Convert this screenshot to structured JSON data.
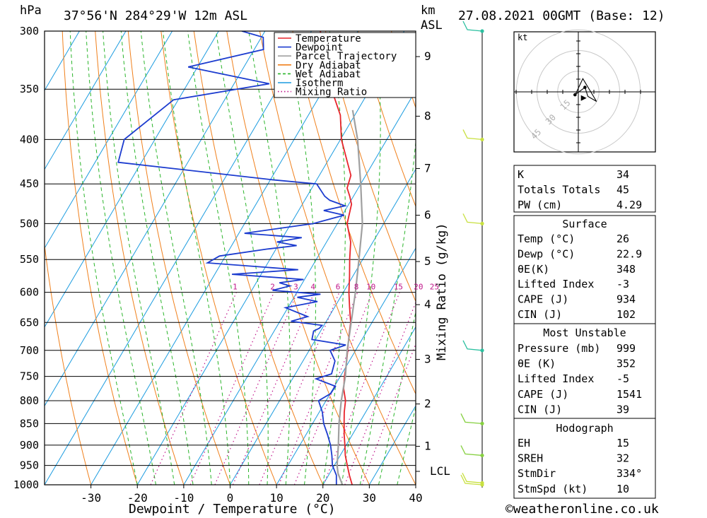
{
  "header": {
    "pressure_unit": "hPa",
    "location": "37°56'N 284°29'W 12m ASL",
    "height_unit_top": "km",
    "height_unit_bottom": "ASL",
    "valid_time": "27.08.2021 00GMT (Base: 12)"
  },
  "footer": {
    "credit": "©weatheronline.co.uk"
  },
  "chart_data": [
    {
      "type": "line",
      "subtype": "skew-T log-P sounding",
      "xlabel": "Dewpoint / Temperature (°C)",
      "ylabel": "hPa",
      "xlim": [
        -40,
        40
      ],
      "ylim": [
        1000,
        300
      ],
      "y_scale": "log",
      "x_ticks": [
        -30,
        -20,
        -10,
        0,
        10,
        20,
        30,
        40
      ],
      "pressure_levels": [
        300,
        350,
        400,
        450,
        500,
        550,
        600,
        650,
        700,
        750,
        800,
        850,
        900,
        950,
        1000
      ],
      "height_axis_label": "Mixing Ratio (g/kg)",
      "height_km_ticks": [
        {
          "label": "9",
          "p": 321
        },
        {
          "label": "8",
          "p": 376
        },
        {
          "label": "7",
          "p": 432
        },
        {
          "label": "6",
          "p": 489
        },
        {
          "label": "5",
          "p": 553
        },
        {
          "label": "4",
          "p": 620
        },
        {
          "label": "3",
          "p": 717
        },
        {
          "label": "2",
          "p": 807
        },
        {
          "label": "1",
          "p": 903
        }
      ],
      "lcl": {
        "label": "LCL",
        "p": 965
      },
      "mixing_ratio_labels": [
        "1",
        "2",
        "3",
        "4",
        "6",
        "8",
        "10",
        "15",
        "20",
        "25"
      ],
      "mixing_ratio_values": [
        1,
        2,
        3,
        4,
        6,
        8,
        10,
        15,
        20,
        25
      ],
      "legend": {
        "placement": "top-right",
        "items": [
          {
            "label": "Temperature",
            "color": "#e8232a",
            "style": "solid"
          },
          {
            "label": "Dewpoint",
            "color": "#1c3ccf",
            "style": "solid"
          },
          {
            "label": "Parcel Trajectory",
            "color": "#a0a0a0",
            "style": "solid"
          },
          {
            "label": "Dry Adiabat",
            "color": "#f0801c",
            "style": "solid"
          },
          {
            "label": "Wet Adiabat",
            "color": "#2bb52b",
            "style": "dashed"
          },
          {
            "label": "Isotherm",
            "color": "#1c9ce0",
            "style": "solid"
          },
          {
            "label": "Mixing Ratio",
            "color": "#c0158a",
            "style": "dotted"
          }
        ]
      },
      "series": [
        {
          "name": "Temperature",
          "color": "#e8232a",
          "points": [
            {
              "p": 1000,
              "t": 26.3
            },
            {
              "p": 975,
              "t": 24.5
            },
            {
              "p": 950,
              "t": 22.8
            },
            {
              "p": 925,
              "t": 21.1
            },
            {
              "p": 900,
              "t": 19.7
            },
            {
              "p": 875,
              "t": 18.2
            },
            {
              "p": 850,
              "t": 16.8
            },
            {
              "p": 825,
              "t": 15.4
            },
            {
              "p": 800,
              "t": 14.2
            },
            {
              "p": 775,
              "t": 12.3
            },
            {
              "p": 750,
              "t": 10.9
            },
            {
              "p": 725,
              "t": 9.7
            },
            {
              "p": 700,
              "t": 8.3
            },
            {
              "p": 675,
              "t": 6.8
            },
            {
              "p": 650,
              "t": 5.4
            },
            {
              "p": 625,
              "t": 3.3
            },
            {
              "p": 600,
              "t": 1.2
            },
            {
              "p": 575,
              "t": -0.7
            },
            {
              "p": 550,
              "t": -2.8
            },
            {
              "p": 525,
              "t": -4.8
            },
            {
              "p": 500,
              "t": -7.9
            },
            {
              "p": 475,
              "t": -9.4
            },
            {
              "p": 465,
              "t": -10.8
            },
            {
              "p": 455,
              "t": -12.4
            },
            {
              "p": 440,
              "t": -13.2
            },
            {
              "p": 425,
              "t": -15.6
            },
            {
              "p": 400,
              "t": -19.8
            },
            {
              "p": 375,
              "t": -23.1
            },
            {
              "p": 350,
              "t": -28.3
            },
            {
              "p": 325,
              "t": -32.6
            },
            {
              "p": 300,
              "t": -38.1
            }
          ]
        },
        {
          "name": "Dewpoint",
          "color": "#1c3ccf",
          "points": [
            {
              "p": 1000,
              "t": 22.9
            },
            {
              "p": 975,
              "t": 21.7
            },
            {
              "p": 950,
              "t": 19.6
            },
            {
              "p": 925,
              "t": 18.2
            },
            {
              "p": 900,
              "t": 16.6
            },
            {
              "p": 875,
              "t": 14.6
            },
            {
              "p": 850,
              "t": 12.4
            },
            {
              "p": 825,
              "t": 10.7
            },
            {
              "p": 800,
              "t": 8.4
            },
            {
              "p": 785,
              "t": 10.1
            },
            {
              "p": 770,
              "t": 10.2
            },
            {
              "p": 755,
              "t": 5.1
            },
            {
              "p": 745,
              "t": 7.8
            },
            {
              "p": 720,
              "t": 6.9
            },
            {
              "p": 700,
              "t": 4.5
            },
            {
              "p": 690,
              "t": 7.2
            },
            {
              "p": 680,
              "t": -0.8
            },
            {
              "p": 665,
              "t": -1.5
            },
            {
              "p": 660,
              "t": -0.6
            },
            {
              "p": 655,
              "t": -0.4
            },
            {
              "p": 648,
              "t": -7.6
            },
            {
              "p": 640,
              "t": -4.6
            },
            {
              "p": 625,
              "t": -10.5
            },
            {
              "p": 615,
              "t": -4.4
            },
            {
              "p": 608,
              "t": -9.3
            },
            {
              "p": 603,
              "t": -4.7
            },
            {
              "p": 597,
              "t": -15.5
            },
            {
              "p": 590,
              "t": -12.3
            },
            {
              "p": 585,
              "t": -15.0
            },
            {
              "p": 580,
              "t": -10.2
            },
            {
              "p": 572,
              "t": -26.3
            },
            {
              "p": 565,
              "t": -12.6
            },
            {
              "p": 555,
              "t": -33.0
            },
            {
              "p": 545,
              "t": -31.3
            },
            {
              "p": 535,
              "t": -22.0
            },
            {
              "p": 530,
              "t": -16.0
            },
            {
              "p": 525,
              "t": -20.7
            },
            {
              "p": 519,
              "t": -15.9
            },
            {
              "p": 513,
              "t": -28.8
            },
            {
              "p": 500,
              "t": -15.2
            },
            {
              "p": 489,
              "t": -9.6
            },
            {
              "p": 483,
              "t": -14.6
            },
            {
              "p": 477,
              "t": -10.6
            },
            {
              "p": 470,
              "t": -14.6
            },
            {
              "p": 465,
              "t": -16.2
            },
            {
              "p": 450,
              "t": -19.5
            },
            {
              "p": 445,
              "t": -29.7
            },
            {
              "p": 425,
              "t": -65.0
            },
            {
              "p": 400,
              "t": -66.6
            },
            {
              "p": 360,
              "t": -61.0
            },
            {
              "p": 345,
              "t": -42.4
            },
            {
              "p": 330,
              "t": -62.0
            },
            {
              "p": 315,
              "t": -48.0
            },
            {
              "p": 305,
              "t": -49.6
            },
            {
              "p": 300,
              "t": -55.0
            }
          ]
        },
        {
          "name": "Parcel Trajectory",
          "color": "#a0a0a0",
          "points": [
            {
              "p": 1000,
              "t": 24.2
            },
            {
              "p": 970,
              "t": 21.8
            },
            {
              "p": 950,
              "t": 20.6
            },
            {
              "p": 900,
              "t": 18.3
            },
            {
              "p": 850,
              "t": 15.7
            },
            {
              "p": 800,
              "t": 13.3
            },
            {
              "p": 750,
              "t": 11.1
            },
            {
              "p": 700,
              "t": 8.2
            },
            {
              "p": 650,
              "t": 5.5
            },
            {
              "p": 600,
              "t": 2.6
            },
            {
              "p": 550,
              "t": -0.8
            },
            {
              "p": 500,
              "t": -4.6
            },
            {
              "p": 450,
              "t": -10.0
            },
            {
              "p": 400,
              "t": -16.3
            },
            {
              "p": 370,
              "t": -21.1
            }
          ]
        }
      ]
    },
    {
      "type": "scatter",
      "subtype": "hodograph",
      "unit": "kt",
      "ring_labels": [
        "15",
        "30",
        "45"
      ],
      "rings": [
        15,
        30,
        45
      ],
      "points": [
        {
          "u": -0.8,
          "v": -0.7
        },
        {
          "u": 1.6,
          "v": 1.1
        },
        {
          "u": 2.3,
          "v": -1.1
        },
        {
          "u": 4.4,
          "v": -2.3
        },
        {
          "u": 1.1,
          "v": 3.2
        },
        {
          "u": -0.6,
          "v": -0.4
        }
      ],
      "storm_motion": {
        "u": 2.0,
        "v": -1.5
      }
    }
  ],
  "indices": {
    "general": [
      {
        "label": "K",
        "value": "34"
      },
      {
        "label": "Totals Totals",
        "value": "45"
      },
      {
        "label": "PW (cm)",
        "value": "4.29"
      }
    ],
    "surface": {
      "title": "Surface",
      "rows": [
        {
          "label": "Temp (°C)",
          "value": "26"
        },
        {
          "label": "Dewp (°C)",
          "value": "22.9"
        },
        {
          "label": "θE(K)",
          "value": "348"
        },
        {
          "label": "Lifted Index",
          "value": "-3"
        },
        {
          "label": "CAPE (J)",
          "value": "934"
        },
        {
          "label": "CIN (J)",
          "value": "102"
        }
      ]
    },
    "most_unstable": {
      "title": "Most Unstable",
      "rows": [
        {
          "label": "Pressure (mb)",
          "value": "999"
        },
        {
          "label": "θE (K)",
          "value": "352"
        },
        {
          "label": "Lifted Index",
          "value": "-5"
        },
        {
          "label": "CAPE (J)",
          "value": "1541"
        },
        {
          "label": "CIN (J)",
          "value": "39"
        }
      ]
    },
    "hodograph": {
      "title": "Hodograph",
      "rows": [
        {
          "label": "EH",
          "value": "15"
        },
        {
          "label": "SREH",
          "value": "32"
        },
        {
          "label": "StmDir",
          "value": "334°"
        },
        {
          "label": "StmSpd (kt)",
          "value": "10"
        }
      ]
    }
  },
  "wind_profile": [
    {
      "p": 1000,
      "speed_kt": 8,
      "color": "#c8e040"
    },
    {
      "p": 995,
      "speed_kt": 6,
      "color": "#c8e040"
    },
    {
      "p": 925,
      "speed_kt": 8,
      "color": "#86d040"
    },
    {
      "p": 850,
      "speed_kt": 8,
      "color": "#86d040"
    },
    {
      "p": 700,
      "speed_kt": 5,
      "color": "#2bc0a0"
    },
    {
      "p": 500,
      "speed_kt": 5,
      "color": "#c8e040"
    },
    {
      "p": 400,
      "speed_kt": 5,
      "color": "#c8e040"
    },
    {
      "p": 300,
      "speed_kt": 5,
      "color": "#2bc0a0"
    }
  ]
}
